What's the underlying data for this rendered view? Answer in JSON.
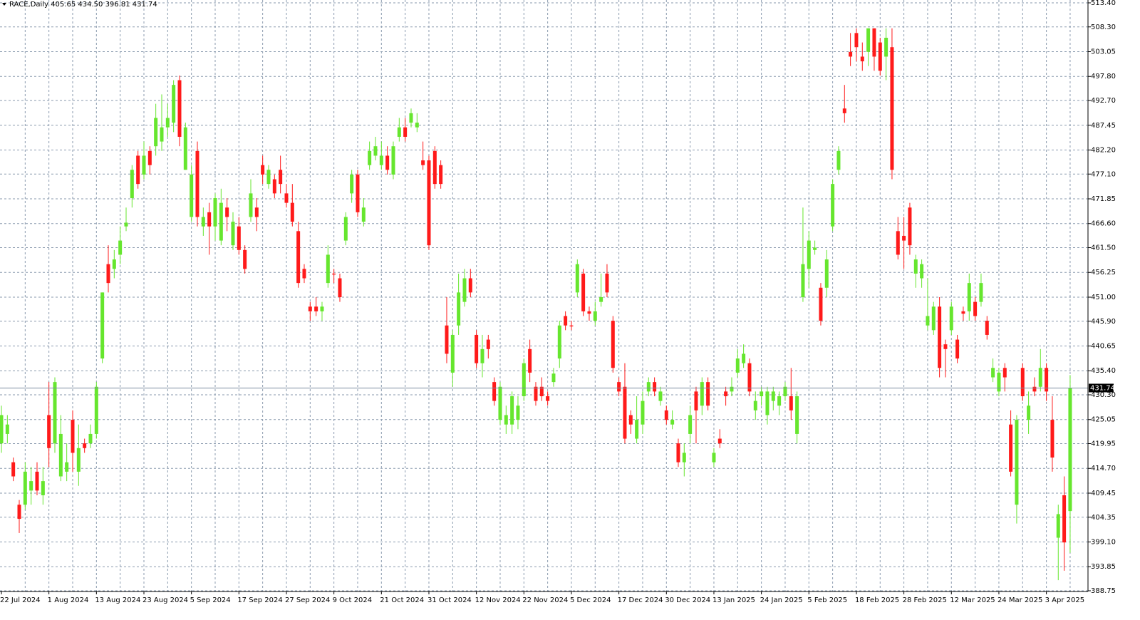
{
  "header": {
    "symbol": "RACE,Daily",
    "ohlc": [
      "405.65",
      "434.50",
      "396.81",
      "431.74"
    ]
  },
  "chart_data": {
    "type": "candlestick",
    "up_color": "#66e62e",
    "down_color": "#ff1a1a",
    "grid": true,
    "ylim": [
      388.75,
      513.4
    ],
    "yticks": [
      {
        "value": 513.4,
        "label": "513.40"
      },
      {
        "value": 508.3,
        "label": "508.30"
      },
      {
        "value": 503.05,
        "label": "503.05"
      },
      {
        "value": 497.8,
        "label": "497.80"
      },
      {
        "value": 492.7,
        "label": "492.70"
      },
      {
        "value": 487.45,
        "label": "487.45"
      },
      {
        "value": 482.2,
        "label": "482.20"
      },
      {
        "value": 477.1,
        "label": "477.10"
      },
      {
        "value": 471.85,
        "label": "471.85"
      },
      {
        "value": 466.6,
        "label": "466.60"
      },
      {
        "value": 461.5,
        "label": "461.50"
      },
      {
        "value": 456.25,
        "label": "456.25"
      },
      {
        "value": 451,
        "label": "451.00"
      },
      {
        "value": 445.9,
        "label": "445.90"
      },
      {
        "value": 440.65,
        "label": "440.65"
      },
      {
        "value": 435.4,
        "label": "435.40"
      },
      {
        "value": 430.3,
        "label": "430.30"
      },
      {
        "value": 425.05,
        "label": "425.05"
      },
      {
        "value": 419.95,
        "label": "419.95"
      },
      {
        "value": 414.7,
        "label": "414.70"
      },
      {
        "value": 409.45,
        "label": "409.45"
      },
      {
        "value": 404.35,
        "label": "404.35"
      },
      {
        "value": 399.1,
        "label": "399.10"
      },
      {
        "value": 393.85,
        "label": "393.85"
      },
      {
        "value": 388.75,
        "label": "388.75"
      }
    ],
    "categories": [
      "22 Jul 2024",
      null,
      null,
      null,
      null,
      null,
      null,
      null,
      "1 Aug 2024",
      null,
      null,
      null,
      null,
      null,
      null,
      null,
      "13 Aug 2024",
      null,
      null,
      null,
      null,
      null,
      null,
      null,
      "23 Aug 2024",
      null,
      null,
      null,
      null,
      null,
      null,
      null,
      "5 Sep 2024",
      null,
      null,
      null,
      null,
      null,
      null,
      null,
      "17 Sep 2024",
      null,
      null,
      null,
      null,
      null,
      null,
      null,
      "27 Sep 2024",
      null,
      null,
      null,
      null,
      null,
      null,
      null,
      "9 Oct 2024",
      null,
      null,
      null,
      null,
      null,
      null,
      null,
      "21 Oct 2024",
      null,
      null,
      null,
      null,
      null,
      null,
      null,
      "31 Oct 2024",
      null,
      null,
      null,
      null,
      null,
      null,
      null,
      "12 Nov 2024",
      null,
      null,
      null,
      null,
      null,
      null,
      null,
      "22 Nov 2024",
      null,
      null,
      null,
      null,
      null,
      null,
      null,
      "5 Dec 2024",
      null,
      null,
      null,
      null,
      null,
      null,
      null,
      "17 Dec 2024",
      null,
      null,
      null,
      null,
      null,
      null,
      null,
      "30 Dec 2024",
      null,
      null,
      null,
      null,
      null,
      null,
      null,
      "13 Jan 2025",
      null,
      null,
      null,
      null,
      null,
      null,
      null,
      "24 Jan 2025",
      null,
      null,
      null,
      null,
      null,
      null,
      null,
      "5 Feb 2025",
      null,
      null,
      null,
      null,
      null,
      null,
      null,
      "18 Feb 2025",
      null,
      null,
      null,
      null,
      null,
      null,
      null,
      "28 Feb 2025",
      null,
      null,
      null,
      null,
      null,
      null,
      null,
      "12 Mar 2025",
      null,
      null,
      null,
      null,
      null,
      null,
      null,
      "24 Mar 2025",
      null,
      null,
      null,
      null,
      null,
      null,
      null,
      "3 Apr 2025",
      null,
      null,
      null,
      null
    ],
    "open": [
      420,
      422,
      416,
      407,
      407,
      410,
      414,
      409,
      426,
      420,
      413,
      414,
      425,
      414,
      420,
      420,
      422,
      438,
      458,
      457,
      460,
      466,
      472,
      481,
      477,
      482,
      483,
      484,
      487,
      488,
      497,
      478,
      468,
      482,
      466,
      469,
      466,
      463,
      470,
      462,
      466,
      461,
      468,
      470,
      479,
      475,
      476,
      478,
      473,
      471,
      465,
      457,
      449,
      449,
      448,
      454,
      456,
      455,
      463,
      473,
      477,
      467,
      479,
      481,
      479,
      481,
      477,
      485,
      487,
      488,
      487,
      480,
      480,
      482,
      479,
      445,
      435,
      445,
      450,
      455,
      443,
      437,
      442,
      433,
      425,
      424,
      424,
      425,
      430,
      440,
      432,
      432,
      430,
      433,
      438,
      447,
      445,
      452,
      456,
      448,
      446,
      450,
      456,
      446,
      433,
      432,
      426,
      421,
      424,
      431,
      433,
      429,
      427,
      424,
      420,
      416,
      422,
      431,
      428,
      433,
      416,
      421,
      431,
      431,
      435,
      437,
      437,
      427,
      430,
      426,
      429,
      428,
      430,
      430,
      422,
      451,
      457,
      461,
      453,
      453,
      466,
      478,
      491,
      503,
      507,
      502,
      503,
      508,
      505,
      502,
      504,
      465,
      464,
      470,
      456,
      455,
      445,
      444,
      449,
      441,
      444,
      442,
      448,
      448,
      450,
      450,
      446,
      434,
      431,
      436,
      424,
      407,
      436,
      425,
      432,
      432,
      436,
      425,
      400,
      409,
      405.65
    ],
    "high": [
      428,
      426,
      417,
      408,
      416,
      415,
      416,
      415,
      433,
      434,
      426,
      420,
      427,
      424,
      421,
      424,
      433,
      452,
      462,
      461,
      466,
      470,
      479,
      482,
      484,
      483,
      492,
      494,
      492,
      497,
      498,
      488,
      479,
      484,
      470,
      471,
      473,
      474,
      472,
      469,
      468,
      462,
      476,
      472,
      481,
      479,
      477,
      481,
      475,
      475,
      467,
      458,
      450,
      451,
      450,
      462,
      457,
      456,
      469,
      478,
      478,
      472,
      484,
      485,
      484,
      483,
      484,
      489,
      489,
      491,
      490,
      484,
      481,
      483,
      480,
      451,
      444,
      456,
      457,
      457,
      444,
      443,
      443,
      434,
      433,
      428,
      431,
      430,
      438,
      442,
      433,
      434,
      431,
      436,
      446,
      448,
      446,
      459,
      457,
      449,
      450,
      456,
      458,
      447,
      434,
      437,
      427,
      430,
      431,
      434,
      434,
      432,
      428,
      427,
      421,
      420,
      428,
      432,
      434,
      434,
      419,
      423,
      432,
      434,
      440,
      441,
      438,
      431,
      432,
      432,
      432,
      431,
      433,
      436,
      431,
      470,
      465,
      463,
      454,
      461,
      476,
      483,
      496,
      507,
      508,
      505,
      508,
      508,
      506,
      508,
      508,
      468,
      468,
      471,
      460,
      459,
      455,
      450,
      451,
      442,
      450,
      443,
      449,
      456,
      451,
      456,
      447,
      438,
      436,
      437,
      427,
      426,
      437,
      431,
      434,
      440,
      437,
      430,
      407,
      413,
      434.5
    ],
    "low": [
      418,
      420,
      412,
      401,
      406,
      407,
      409,
      407,
      415,
      418,
      412,
      412,
      414,
      411,
      418,
      419,
      421,
      437,
      452,
      455,
      458,
      465,
      470,
      474,
      476,
      477,
      481,
      482,
      485,
      486,
      483,
      478,
      467,
      466,
      464,
      460,
      463,
      462,
      465,
      461,
      460,
      456,
      467,
      465,
      475,
      474,
      472,
      473,
      470,
      466,
      453,
      454,
      446,
      447,
      446,
      453,
      454,
      450,
      462,
      471,
      468,
      466,
      478,
      480,
      478,
      477,
      476,
      484,
      484,
      487,
      486,
      478,
      461,
      474,
      474,
      437,
      432,
      443,
      449,
      451,
      436,
      434,
      438,
      428,
      424,
      422,
      422,
      423,
      429,
      433,
      428,
      429,
      428,
      432,
      436,
      444,
      444,
      451,
      447,
      446,
      445,
      449,
      451,
      435,
      430,
      420,
      422,
      420,
      422,
      430,
      430,
      428,
      424,
      423,
      415,
      413,
      420,
      420,
      426,
      427,
      415,
      419,
      428,
      430,
      434,
      436,
      430,
      425,
      428,
      424,
      427,
      426,
      429,
      425,
      420,
      450,
      453,
      460,
      445,
      451,
      465,
      477,
      488,
      500,
      501,
      499,
      500,
      499,
      498,
      497,
      476,
      459,
      457,
      460,
      453,
      453,
      444,
      443,
      434,
      434,
      443,
      437,
      446,
      446,
      446,
      449,
      442,
      433,
      430,
      431,
      413,
      403,
      429,
      422,
      430,
      431,
      429,
      414,
      391,
      393,
      396.81
    ],
    "close": [
      426,
      424,
      413,
      404,
      414,
      412,
      410,
      412,
      419,
      433,
      422,
      416,
      418,
      419,
      419,
      422,
      432,
      452,
      454,
      459,
      463,
      466.8,
      478,
      475,
      481,
      479,
      489,
      487,
      489,
      496,
      485,
      487,
      477,
      468,
      468,
      466,
      472,
      471,
      468,
      467,
      461,
      457,
      473,
      468,
      477,
      478,
      473,
      475,
      471,
      467,
      454,
      455,
      448,
      448,
      449,
      460,
      455.8,
      451,
      468,
      477,
      469,
      470,
      482,
      483,
      481,
      478,
      483,
      487,
      485,
      490,
      488,
      479,
      462,
      475,
      475,
      439,
      443,
      452,
      455,
      452,
      437,
      440,
      440,
      429,
      432,
      426,
      430,
      428,
      437,
      435,
      429,
      430,
      429,
      434.8,
      445,
      445,
      444.8,
      458,
      448,
      447.5,
      448,
      451,
      452,
      436,
      431,
      421,
      424,
      425,
      429,
      433,
      431,
      431,
      425,
      425,
      416,
      418,
      426,
      427,
      433,
      428,
      418,
      420,
      430,
      432,
      438,
      439,
      431,
      429,
      431,
      431,
      431,
      430,
      432,
      427,
      430,
      458,
      463,
      461.5,
      446,
      459,
      475,
      482,
      490,
      502,
      504,
      501,
      508,
      502,
      499,
      506,
      478,
      460,
      463,
      462,
      459,
      458,
      447,
      449,
      436,
      440,
      449,
      438,
      447.5,
      454,
      447,
      454,
      443,
      436,
      435,
      434,
      414,
      425,
      430,
      428,
      431,
      436,
      431,
      417,
      405,
      399,
      431.74
    ]
  }
}
